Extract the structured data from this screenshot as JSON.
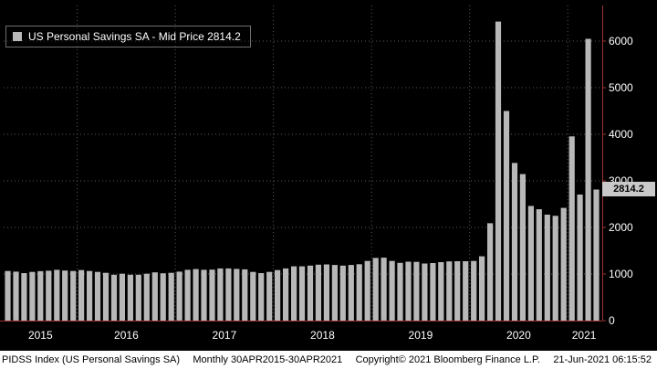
{
  "legend": {
    "label": "US Personal Savings SA - Mid Price 2814.2"
  },
  "last_price_badge": "2814.2",
  "footer": {
    "ticker": "PIDSS Index (US Personal Savings SA)",
    "period": "Monthly 30APR2015-30APR2021",
    "copyright": "Copyright© 2021 Bloomberg Finance L.P.",
    "datetime": "21-Jun-2021 06:15:52"
  },
  "colors": {
    "background": "#000000",
    "bar": "#b8b8b8",
    "axis": "#9e3232",
    "grid": "#5a5a5a",
    "text": "#ffffff",
    "badge_bg": "#c9c9c9",
    "badge_text": "#000000",
    "footer_bg": "#ffffff",
    "footer_text": "#000000"
  },
  "chart_data": {
    "type": "bar",
    "title": "US Personal Savings SA - Mid Price",
    "series_name": "US Personal Savings SA",
    "last_price": 2814.2,
    "x": [
      "Apr-2015",
      "May-2015",
      "Jun-2015",
      "Jul-2015",
      "Aug-2015",
      "Sep-2015",
      "Oct-2015",
      "Nov-2015",
      "Dec-2015",
      "Jan-2016",
      "Feb-2016",
      "Mar-2016",
      "Apr-2016",
      "May-2016",
      "Jun-2016",
      "Jul-2016",
      "Aug-2016",
      "Sep-2016",
      "Oct-2016",
      "Nov-2016",
      "Dec-2016",
      "Jan-2017",
      "Feb-2017",
      "Mar-2017",
      "Apr-2017",
      "May-2017",
      "Jun-2017",
      "Jul-2017",
      "Aug-2017",
      "Sep-2017",
      "Oct-2017",
      "Nov-2017",
      "Dec-2017",
      "Jan-2018",
      "Feb-2018",
      "Mar-2018",
      "Apr-2018",
      "May-2018",
      "Jun-2018",
      "Jul-2018",
      "Aug-2018",
      "Sep-2018",
      "Oct-2018",
      "Nov-2018",
      "Dec-2018",
      "Jan-2019",
      "Feb-2019",
      "Mar-2019",
      "Apr-2019",
      "May-2019",
      "Jun-2019",
      "Jul-2019",
      "Aug-2019",
      "Sep-2019",
      "Oct-2019",
      "Nov-2019",
      "Dec-2019",
      "Jan-2020",
      "Feb-2020",
      "Mar-2020",
      "Apr-2020",
      "May-2020",
      "Jun-2020",
      "Jul-2020",
      "Aug-2020",
      "Sep-2020",
      "Oct-2020",
      "Nov-2020",
      "Dec-2020",
      "Jan-2021",
      "Feb-2021",
      "Mar-2021",
      "Apr-2021"
    ],
    "values": [
      1065,
      1050,
      1020,
      1045,
      1060,
      1070,
      1090,
      1075,
      1065,
      1085,
      1065,
      1045,
      1025,
      985,
      1005,
      985,
      985,
      1005,
      1035,
      1015,
      1025,
      1050,
      1090,
      1105,
      1090,
      1095,
      1120,
      1120,
      1110,
      1100,
      1045,
      1020,
      1045,
      1085,
      1120,
      1165,
      1165,
      1180,
      1200,
      1205,
      1195,
      1180,
      1195,
      1210,
      1280,
      1345,
      1350,
      1280,
      1240,
      1265,
      1260,
      1225,
      1235,
      1255,
      1270,
      1275,
      1275,
      1280,
      1380,
      2090,
      6420,
      4500,
      3385,
      3145,
      2460,
      2390,
      2275,
      2250,
      2420,
      3955,
      2705,
      6050,
      2814.2
    ],
    "y_ticks": [
      0,
      1000,
      2000,
      3000,
      4000,
      5000,
      6000
    ],
    "ylim": [
      0,
      6600
    ],
    "x_tick_labels": [
      "2015",
      "2016",
      "2017",
      "2018",
      "2019",
      "2020",
      "2021"
    ],
    "grid": true,
    "legend_position": "top-left",
    "y_axis_side": "right"
  }
}
